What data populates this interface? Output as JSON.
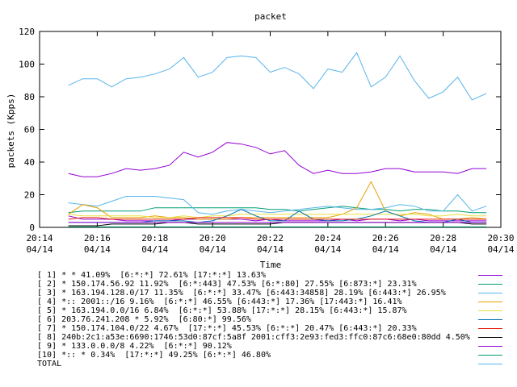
{
  "chart_data": {
    "type": "line",
    "title": "packet",
    "xlabel": "Time",
    "ylabel": "packets (Kpps)",
    "ylim": [
      0,
      120
    ],
    "yticks": [
      0,
      20,
      40,
      60,
      80,
      100,
      120
    ],
    "xlim": [
      "20:14",
      "20:30"
    ],
    "xtick_labels": [
      {
        "time": "20:14",
        "date": "04/14"
      },
      {
        "time": "20:16",
        "date": "04/14"
      },
      {
        "time": "20:18",
        "date": "04/14"
      },
      {
        "time": "20:20",
        "date": "04/14"
      },
      {
        "time": "20:22",
        "date": "04/14"
      },
      {
        "time": "20:24",
        "date": "04/14"
      },
      {
        "time": "20:26",
        "date": "04/14"
      },
      {
        "time": "20:28",
        "date": "04/14"
      },
      {
        "time": "20:30",
        "date": "04/14"
      }
    ],
    "grid": false,
    "legend_position": "bottom",
    "x": [
      "20:15:00",
      "20:15:30",
      "20:16:00",
      "20:16:30",
      "20:17:00",
      "20:17:30",
      "20:18:00",
      "20:18:30",
      "20:19:00",
      "20:19:30",
      "20:20:00",
      "20:20:30",
      "20:21:00",
      "20:21:30",
      "20:22:00",
      "20:22:30",
      "20:23:00",
      "20:23:30",
      "20:24:00",
      "20:24:30",
      "20:25:00",
      "20:25:30",
      "20:26:00",
      "20:26:30",
      "20:27:00",
      "20:27:30",
      "20:28:00",
      "20:28:30",
      "20:29:00",
      "20:29:30"
    ],
    "series": [
      {
        "name": "[ 1] * * 41.09%  [6:*:*] 72.61% [17:*:*] 13.63%",
        "color": "#9400d3",
        "values": [
          7,
          5,
          5,
          5,
          4,
          4,
          4,
          4,
          5,
          5,
          5,
          5,
          5,
          4,
          5,
          4,
          4,
          4,
          4,
          5,
          4,
          5,
          5,
          4,
          5,
          4,
          4,
          4,
          4,
          4
        ]
      },
      {
        "name": "[ 2] * 150.174.56.92 11.92%  [6:*:443] 47.53% [6:*:80] 27.55% [6:873:*] 23.31%",
        "color": "#009e73",
        "values": [
          9,
          10,
          10,
          10,
          10,
          10,
          12,
          12,
          12,
          12,
          12,
          12,
          12,
          12,
          11,
          11,
          10,
          11,
          12,
          13,
          12,
          11,
          11,
          10,
          11,
          11,
          10,
          10,
          9,
          9
        ]
      },
      {
        "name": "[ 3] * 163.194.128.0/17 11.35%  [6:*:*] 33.47% [6:443:34858] 28.19% [6:443:*] 26.95%",
        "color": "#56b4e9",
        "values": [
          15,
          14,
          13,
          16,
          19,
          19,
          19,
          18,
          17,
          9,
          8,
          10,
          11,
          10,
          9,
          10,
          11,
          12,
          13,
          12,
          11,
          11,
          12,
          14,
          13,
          10,
          10,
          20,
          10,
          13
        ]
      },
      {
        "name": "[ 4] *:: 2001::/16 9.16%  [6:*:*] 46.55% [6:443:*] 17.36% [17:443:*] 16.41%",
        "color": "#e69f00",
        "values": [
          8,
          14,
          12,
          6,
          6,
          6,
          7,
          6,
          6,
          5,
          5,
          5,
          6,
          6,
          6,
          6,
          6,
          6,
          6,
          8,
          12,
          28,
          10,
          7,
          9,
          8,
          5,
          5,
          6,
          5
        ]
      },
      {
        "name": "[ 5] * 163.194.0.0/16 6.84%  [6:*:*] 53.88% [17:*:*] 28.15% [6:443:*] 15.87%",
        "color": "#e8dd3a",
        "values": [
          8,
          7,
          7,
          7,
          7,
          7,
          6,
          6,
          7,
          6,
          7,
          7,
          8,
          8,
          8,
          8,
          8,
          8,
          8,
          8,
          8,
          8,
          8,
          8,
          8,
          7,
          7,
          8,
          7,
          7
        ]
      },
      {
        "name": "[ 6] 203.76.241.208 * 5.92%  [6:80:*] 99.56%",
        "color": "#0072b2",
        "values": [
          3,
          3,
          3,
          3,
          3,
          3,
          4,
          4,
          4,
          3,
          4,
          7,
          11,
          7,
          4,
          4,
          10,
          5,
          4,
          4,
          5,
          7,
          10,
          7,
          4,
          3,
          3,
          5,
          3,
          3
        ]
      },
      {
        "name": "[ 7] * 150.174.104.0/22 4.67%  [17:*:*] 45.53% [6:*:*] 20.47% [6:443:*] 20.33%",
        "color": "#e51e10",
        "values": [
          5,
          6,
          6,
          5,
          5,
          5,
          5,
          5,
          5,
          6,
          6,
          6,
          6,
          5,
          5,
          5,
          5,
          5,
          5,
          5,
          5,
          5,
          5,
          5,
          5,
          5,
          5,
          5,
          5,
          5
        ]
      },
      {
        "name": "[ 8] 240b:2c1:a53e:6690:1746:53d0:87cf:5a8f 2001:cff3:2e93:fed3:ffc0:87c6:68e0:80dd 4.50%",
        "color": "#000000",
        "values": [
          1,
          1,
          1,
          2,
          2,
          2,
          2,
          3,
          3,
          2,
          2,
          2,
          2,
          2,
          2,
          3,
          3,
          3,
          3,
          3,
          3,
          3,
          3,
          3,
          3,
          3,
          3,
          3,
          2,
          2
        ]
      },
      {
        "name": "[ 9] * 133.0.0.0/8 4.22%  [6:*:*] 90.12%",
        "color": "#9400d3",
        "values": [
          3,
          3,
          3,
          3,
          3,
          3,
          3,
          3,
          3,
          3,
          3,
          3,
          3,
          3,
          3,
          3,
          3,
          3,
          3,
          3,
          3,
          3,
          3,
          3,
          3,
          3,
          3,
          3,
          3,
          3
        ]
      },
      {
        "name": "[10] *:: * 0.34%  [17:*:*] 49.25% [6:*:*] 46.80%",
        "color": "#009e73",
        "values": [
          0.3,
          0.3,
          0.3,
          0.3,
          0.3,
          0.3,
          0.3,
          0.3,
          0.3,
          0.3,
          0.3,
          0.3,
          0.3,
          0.3,
          0.3,
          0.3,
          0.3,
          0.3,
          0.3,
          0.3,
          0.3,
          0.3,
          0.3,
          0.3,
          0.3,
          0.3,
          0.3,
          0.3,
          0.3,
          0.3
        ]
      },
      {
        "name": "TOTAL",
        "color": "#56b4e9",
        "values": [
          87,
          91,
          91,
          86,
          91,
          92,
          94,
          97,
          104,
          92,
          95,
          104,
          105,
          104,
          95,
          98,
          94,
          85,
          97,
          95,
          107,
          86,
          92,
          105,
          90,
          79,
          83,
          92,
          78,
          82
        ]
      },
      {
        "name": "",
        "color": "#9400d3",
        "values": [
          33,
          31,
          31,
          33,
          36,
          35,
          36,
          38,
          46,
          43,
          46,
          52,
          51,
          49,
          45,
          47,
          38,
          33,
          35,
          33,
          33,
          34,
          36,
          36,
          34,
          34,
          34,
          33,
          36,
          36
        ]
      }
    ]
  }
}
